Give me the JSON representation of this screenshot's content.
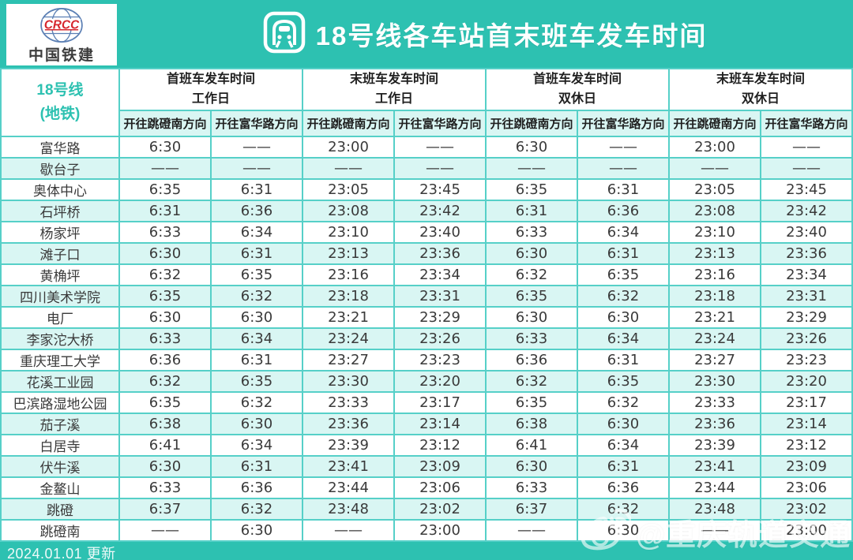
{
  "header": {
    "logo": {
      "brand_acronym": "CRCC",
      "company": "中国铁建"
    },
    "title": "18号线各车站首末班车发车时间"
  },
  "icons": {
    "logo": "crcc-globe-icon",
    "title": "train-icon",
    "watermark": "weibo-icon"
  },
  "colors": {
    "teal": "#2dc1b1",
    "row-alt": "#d9f6f3",
    "border": "#56d0c8",
    "text-dark": "#3a3a3a",
    "crcc-red": "#d6272e"
  },
  "table": {
    "line_label": "18号线",
    "line_sublabel": "(地铁)",
    "groups": [
      {
        "title": "首班车发车时间",
        "day": "工作日"
      },
      {
        "title": "末班车发车时间",
        "day": "工作日"
      },
      {
        "title": "首班车发车时间",
        "day": "双休日"
      },
      {
        "title": "末班车发车时间",
        "day": "双休日"
      }
    ],
    "direction_headers": [
      "开往跳磴南方向",
      "开往富华路方向",
      "开往跳磴南方向",
      "开往富华路方向",
      "开往跳磴南方向",
      "开往富华路方向",
      "开往跳磴南方向",
      "开往富华路方向"
    ],
    "rows": [
      {
        "station": "富华路",
        "times": [
          "6:30",
          "——",
          "23:00",
          "——",
          "6:30",
          "——",
          "23:00",
          "——"
        ]
      },
      {
        "station": "歇台子",
        "times": [
          "——",
          "——",
          "——",
          "——",
          "——",
          "——",
          "——",
          "——"
        ]
      },
      {
        "station": "奥体中心",
        "times": [
          "6:35",
          "6:31",
          "23:05",
          "23:45",
          "6:35",
          "6:31",
          "23:05",
          "23:45"
        ]
      },
      {
        "station": "石坪桥",
        "times": [
          "6:31",
          "6:36",
          "23:08",
          "23:42",
          "6:31",
          "6:36",
          "23:08",
          "23:42"
        ]
      },
      {
        "station": "杨家坪",
        "times": [
          "6:33",
          "6:34",
          "23:10",
          "23:40",
          "6:33",
          "6:34",
          "23:10",
          "23:40"
        ]
      },
      {
        "station": "滩子口",
        "times": [
          "6:30",
          "6:31",
          "23:13",
          "23:36",
          "6:30",
          "6:31",
          "23:13",
          "23:36"
        ]
      },
      {
        "station": "黄桷坪",
        "times": [
          "6:32",
          "6:35",
          "23:16",
          "23:34",
          "6:32",
          "6:35",
          "23:16",
          "23:34"
        ]
      },
      {
        "station": "四川美术学院",
        "times": [
          "6:35",
          "6:32",
          "23:18",
          "23:31",
          "6:35",
          "6:32",
          "23:18",
          "23:31"
        ]
      },
      {
        "station": "电厂",
        "times": [
          "6:30",
          "6:30",
          "23:21",
          "23:29",
          "6:30",
          "6:30",
          "23:21",
          "23:29"
        ]
      },
      {
        "station": "李家沱大桥",
        "times": [
          "6:33",
          "6:34",
          "23:24",
          "23:26",
          "6:33",
          "6:34",
          "23:24",
          "23:26"
        ]
      },
      {
        "station": "重庆理工大学",
        "times": [
          "6:36",
          "6:31",
          "23:27",
          "23:23",
          "6:36",
          "6:31",
          "23:27",
          "23:23"
        ]
      },
      {
        "station": "花溪工业园",
        "times": [
          "6:32",
          "6:35",
          "23:30",
          "23:20",
          "6:32",
          "6:35",
          "23:30",
          "23:20"
        ]
      },
      {
        "station": "巴滨路湿地公园",
        "times": [
          "6:35",
          "6:32",
          "23:33",
          "23:17",
          "6:35",
          "6:32",
          "23:33",
          "23:17"
        ]
      },
      {
        "station": "茄子溪",
        "times": [
          "6:38",
          "6:30",
          "23:36",
          "23:14",
          "6:38",
          "6:30",
          "23:36",
          "23:14"
        ]
      },
      {
        "station": "白居寺",
        "times": [
          "6:41",
          "6:34",
          "23:39",
          "23:12",
          "6:41",
          "6:34",
          "23:39",
          "23:12"
        ]
      },
      {
        "station": "伏牛溪",
        "times": [
          "6:30",
          "6:31",
          "23:41",
          "23:09",
          "6:30",
          "6:31",
          "23:41",
          "23:09"
        ]
      },
      {
        "station": "金鳌山",
        "times": [
          "6:33",
          "6:36",
          "23:44",
          "23:06",
          "6:33",
          "6:36",
          "23:44",
          "23:06"
        ]
      },
      {
        "station": "跳磴",
        "times": [
          "6:37",
          "6:32",
          "23:48",
          "23:02",
          "6:37",
          "6:32",
          "23:48",
          "23:02"
        ]
      },
      {
        "station": "跳磴南",
        "times": [
          "——",
          "6:30",
          "——",
          "23:00",
          "——",
          "6:30",
          "——",
          "23:00"
        ]
      }
    ]
  },
  "footer": {
    "updated": "2024.01.01 更新",
    "watermark": "@重庆轨道交通"
  }
}
